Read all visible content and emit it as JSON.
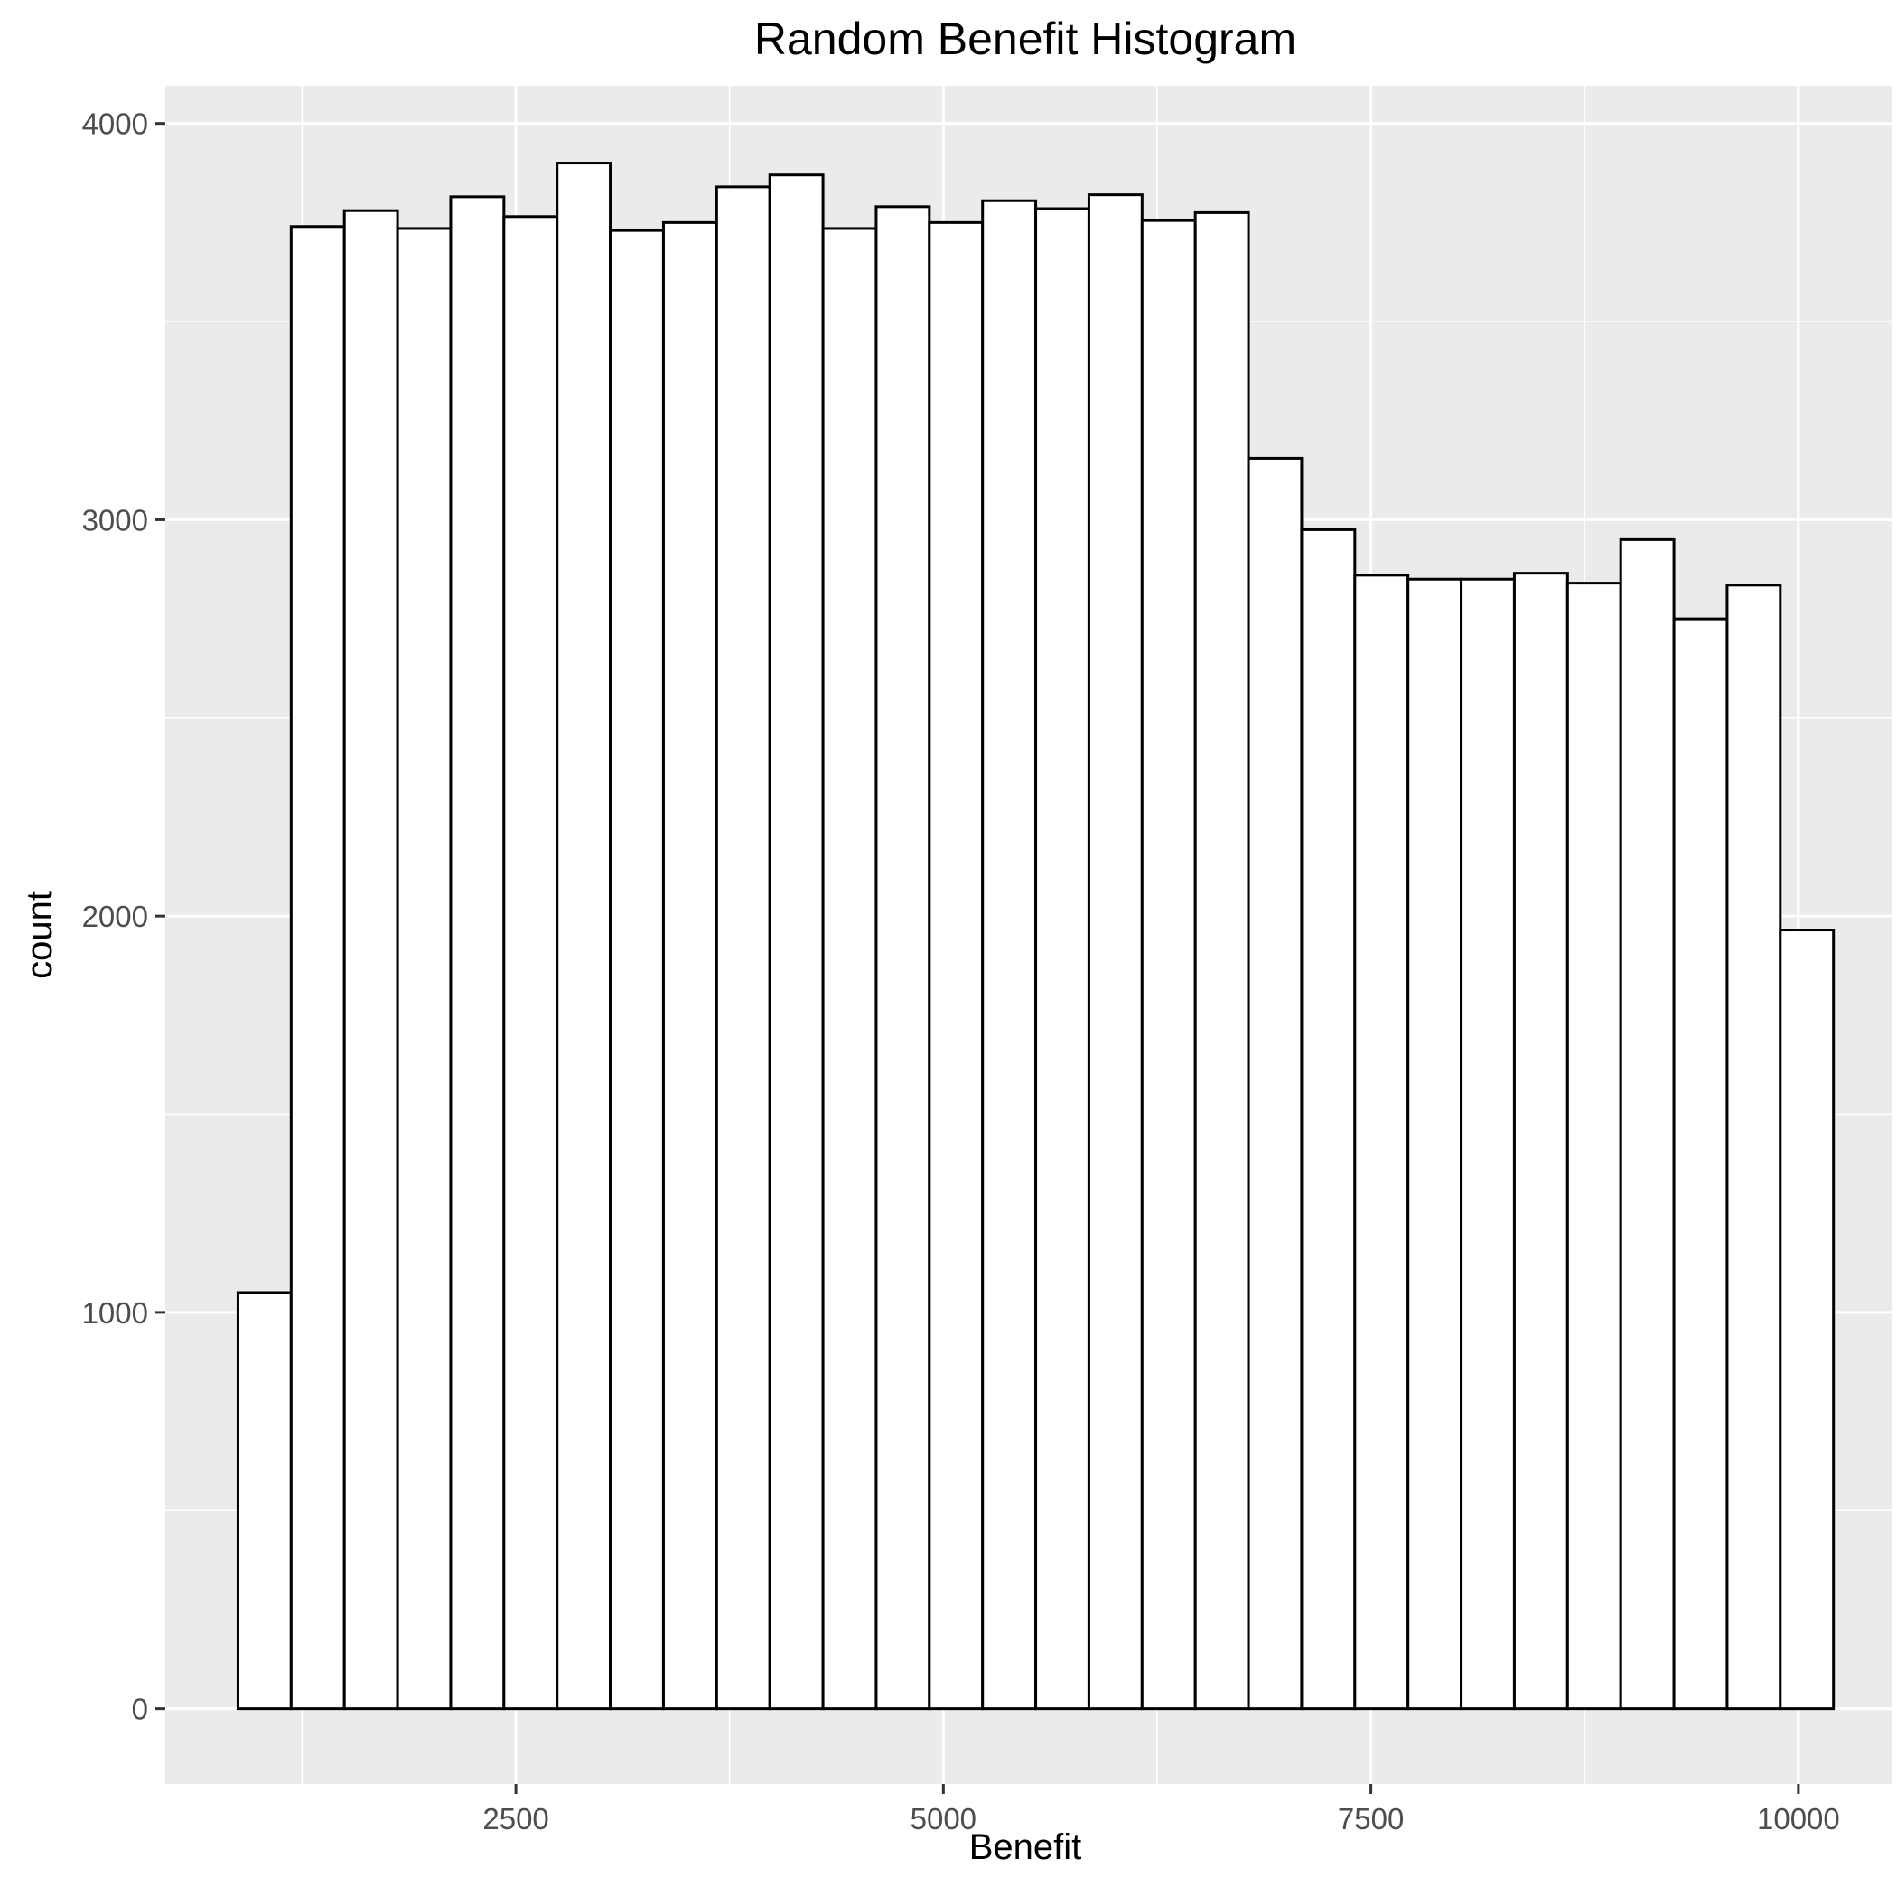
{
  "chart_data": {
    "type": "bar",
    "title": "Random Benefit Histogram",
    "xlabel": "Benefit",
    "ylabel": "count",
    "xlim": [
      450,
      10550
    ],
    "ylim": [
      -190,
      4095
    ],
    "x_ticks": [
      2500,
      5000,
      7500,
      10000
    ],
    "y_ticks": [
      0,
      1000,
      2000,
      3000,
      4000
    ],
    "grid": true,
    "bin_width": 311,
    "bins_start": 875,
    "values": [
      1050,
      3740,
      3780,
      3735,
      3815,
      3765,
      3900,
      3730,
      3750,
      3840,
      3870,
      3735,
      3790,
      3750,
      3805,
      3785,
      3820,
      3755,
      3775,
      3155,
      2975,
      2860,
      2850,
      2850,
      2865,
      2840,
      2950,
      2750,
      2835,
      1965
    ],
    "colors": {
      "panel": "#ebebeb",
      "grid": "#ffffff",
      "bar_fill": "#ffffff",
      "bar_stroke": "#000000"
    }
  }
}
